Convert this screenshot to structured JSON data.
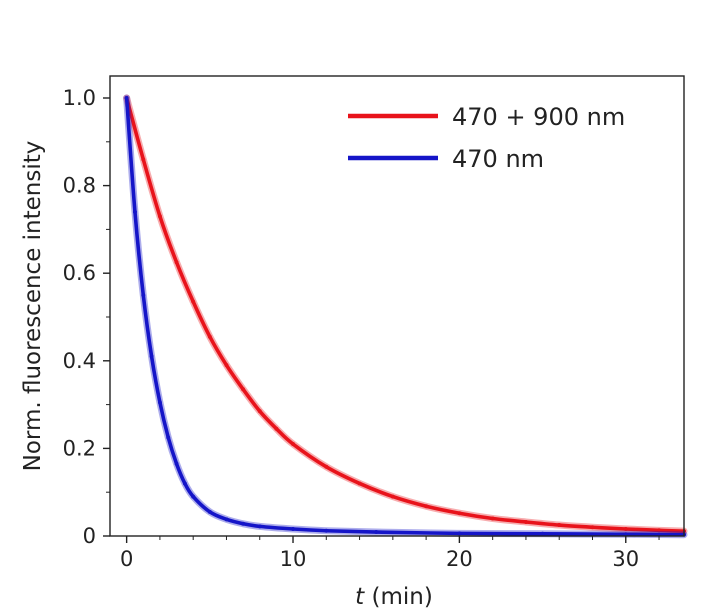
{
  "chart_data": {
    "type": "line",
    "title": "",
    "xlabel": "t (min)",
    "xlabel_var": "t",
    "xlabel_unit": " (min)",
    "ylabel": "Norm. fluorescence intensity",
    "xlim": [
      -1,
      33.5
    ],
    "ylim": [
      0,
      1.05
    ],
    "x_ticks": [
      0,
      10,
      20,
      30
    ],
    "x_tick_labels": [
      "0",
      "10",
      "20",
      "30"
    ],
    "y_ticks": [
      0,
      0.2,
      0.4,
      0.6,
      0.8,
      1.0
    ],
    "y_tick_labels": [
      "0",
      "0.2",
      "0.4",
      "0.6",
      "0.8",
      "1.0"
    ],
    "grid": false,
    "legend_position": "top-right",
    "series": [
      {
        "name": "470 + 900 nm",
        "color": "#e8131b",
        "x": [
          0,
          1,
          2,
          3,
          4,
          5,
          6,
          7,
          8,
          9,
          10,
          12,
          14,
          16,
          18,
          20,
          22,
          24,
          26,
          28,
          30,
          32,
          33.5
        ],
        "y": [
          1.0,
          0.86,
          0.73,
          0.625,
          0.535,
          0.455,
          0.39,
          0.335,
          0.285,
          0.245,
          0.21,
          0.158,
          0.12,
          0.09,
          0.068,
          0.052,
          0.04,
          0.032,
          0.025,
          0.02,
          0.016,
          0.013,
          0.011
        ]
      },
      {
        "name": "470 nm",
        "color": "#1515c8",
        "x": [
          0,
          0.5,
          1,
          1.5,
          2,
          2.5,
          3,
          3.5,
          4,
          5,
          6,
          7,
          8,
          10,
          12,
          15,
          20,
          25,
          30,
          33.5
        ],
        "y": [
          1.0,
          0.74,
          0.55,
          0.41,
          0.305,
          0.225,
          0.165,
          0.12,
          0.09,
          0.055,
          0.038,
          0.028,
          0.022,
          0.016,
          0.012,
          0.009,
          0.006,
          0.005,
          0.004,
          0.003
        ]
      }
    ]
  }
}
